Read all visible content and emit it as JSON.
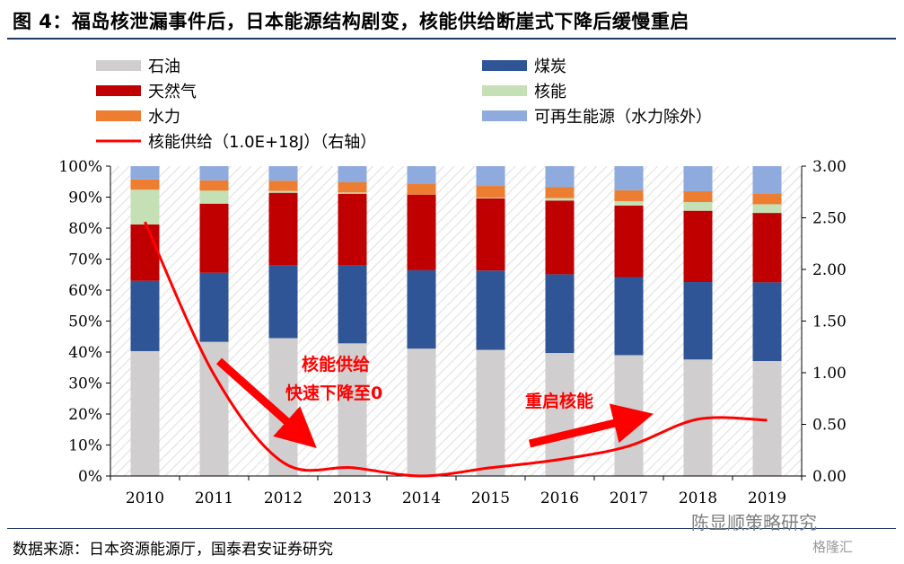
{
  "title": "图 4：福岛核泄漏事件后，日本能源结构剧变，核能供给断崖式下降后缓慢重启",
  "source": "数据来源：日本资源能源厅，国泰君安证券研究",
  "watermark": "陈显顺策略研究",
  "watermark_logo": "格隆汇",
  "chart_data": {
    "type": "bar",
    "stacked": true,
    "categories": [
      "2010",
      "2011",
      "2012",
      "2013",
      "2014",
      "2015",
      "2016",
      "2017",
      "2018",
      "2019"
    ],
    "y_left": {
      "ylim": [
        0,
        100
      ],
      "ticks": [
        "0%",
        "10%",
        "20%",
        "30%",
        "40%",
        "50%",
        "60%",
        "70%",
        "80%",
        "90%",
        "100%"
      ]
    },
    "y_right": {
      "ylim": [
        0,
        3
      ],
      "ticks": [
        "0.00",
        "0.50",
        "1.00",
        "1.50",
        "2.00",
        "2.50",
        "3.00"
      ]
    },
    "series": [
      {
        "name": "石油",
        "color": "#d0cece",
        "values": [
          40.3,
          43.3,
          44.5,
          42.8,
          41.1,
          40.7,
          39.7,
          39.0,
          37.6,
          37.1
        ]
      },
      {
        "name": "煤炭",
        "color": "#2f5597",
        "values": [
          22.7,
          22.3,
          23.6,
          25.2,
          25.3,
          25.6,
          25.4,
          25.2,
          25.0,
          25.4
        ]
      },
      {
        "name": "天然气",
        "color": "#c00000",
        "values": [
          18.2,
          22.3,
          23.3,
          23.1,
          24.4,
          23.3,
          23.8,
          23.1,
          23.0,
          22.4
        ]
      },
      {
        "name": "核能",
        "color": "#c5e0b4",
        "values": [
          11.2,
          4.2,
          0.6,
          0.4,
          0.0,
          0.2,
          0.8,
          1.4,
          2.8,
          2.8
        ]
      },
      {
        "name": "水力",
        "color": "#ed7d31",
        "values": [
          3.3,
          3.3,
          3.3,
          3.3,
          3.4,
          3.8,
          3.5,
          3.5,
          3.5,
          3.5
        ]
      },
      {
        "name": "可再生能源（水力除外）",
        "color": "#8faadc",
        "values": [
          4.3,
          4.6,
          4.7,
          5.2,
          5.8,
          6.4,
          6.8,
          7.8,
          8.1,
          8.8
        ]
      }
    ],
    "line": {
      "name": "核能供给（1.0E+18J）（右轴）",
      "color": "#ff0000",
      "axis": "right",
      "values": [
        2.46,
        0.98,
        0.13,
        0.08,
        0.0,
        0.08,
        0.16,
        0.29,
        0.55,
        0.54
      ]
    },
    "annotations": [
      {
        "text_lines": [
          "核能供给",
          "快速下降至0"
        ],
        "color": "#ff0000"
      },
      {
        "text_lines": [
          "重启核能"
        ],
        "color": "#ff0000"
      }
    ]
  }
}
